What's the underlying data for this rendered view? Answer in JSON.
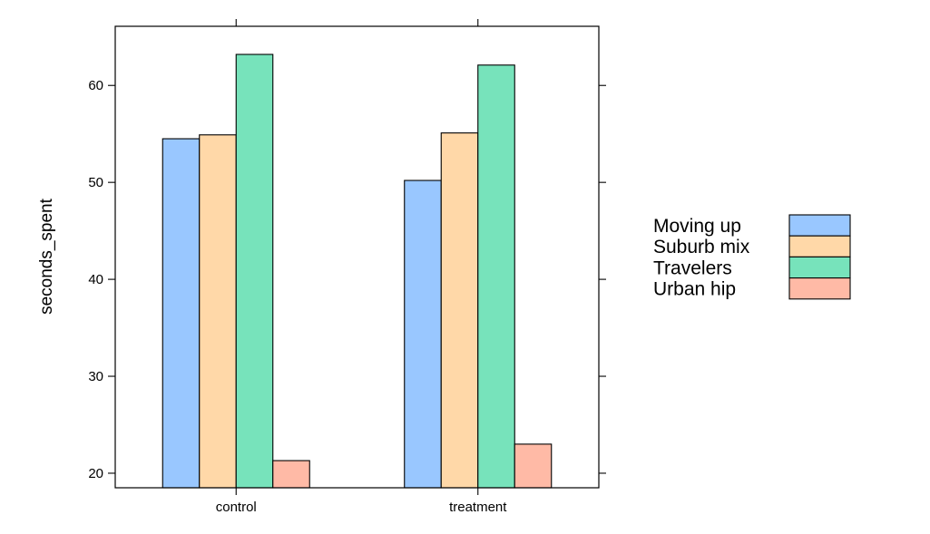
{
  "chart_data": {
    "type": "bar",
    "title": "",
    "xlabel": "",
    "ylabel": "seconds_spent",
    "categories": [
      "control",
      "treatment"
    ],
    "series": [
      {
        "name": "Moving up",
        "color": "#99c7ff",
        "values": [
          54.5,
          50.2
        ]
      },
      {
        "name": "Suburb mix",
        "color": "#ffd8a8",
        "values": [
          54.9,
          55.1
        ]
      },
      {
        "name": "Travelers",
        "color": "#77e3bb",
        "values": [
          63.2,
          62.1
        ]
      },
      {
        "name": "Urban hip",
        "color": "#ffbaa6",
        "values": [
          21.3,
          23.0
        ]
      }
    ],
    "ylim": [
      18.5,
      66.1
    ],
    "yticks": [
      20,
      30,
      40,
      50,
      60
    ],
    "ytick_labels": [
      "20",
      "30",
      "40",
      "50",
      "60"
    ],
    "grid": false,
    "legend_position": "right"
  }
}
